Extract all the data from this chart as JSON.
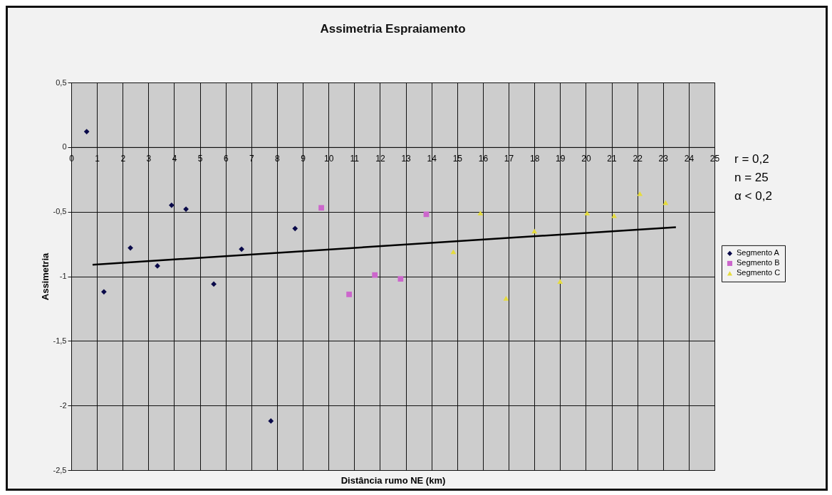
{
  "chart_data": {
    "type": "scatter",
    "title": "Assimetria Espraiamento",
    "xlabel": "Distância rumo NE (km)",
    "ylabel": "Assimetria",
    "xlim": [
      0,
      25
    ],
    "xticks": [
      0,
      1,
      2,
      3,
      4,
      5,
      6,
      7,
      8,
      9,
      10,
      11,
      12,
      13,
      14,
      15,
      16,
      17,
      18,
      19,
      20,
      21,
      22,
      23,
      24,
      25
    ],
    "ylim": [
      -2.5,
      0.5
    ],
    "yticks": [
      {
        "value": 0.5,
        "label": "0,5"
      },
      0,
      {
        "value": -0.5,
        "label": "-0,5"
      },
      -1,
      {
        "value": -1.5,
        "label": "-1,5"
      },
      -2,
      {
        "value": -2.5,
        "label": "-2,5"
      }
    ],
    "grid": true,
    "legend": "right",
    "annotations": [
      "r = 0,2",
      "n = 25",
      "α < 0,2"
    ],
    "series": [
      {
        "name": "Segmento A",
        "color": "#0a0a4a",
        "marker": "diamond",
        "x": [
          0.6,
          1.27,
          2.3,
          3.35,
          3.9,
          4.46,
          5.54,
          6.62,
          7.76,
          8.7
        ],
        "values": [
          0.12,
          -1.12,
          -0.78,
          -0.92,
          -0.45,
          -0.48,
          -1.06,
          -0.79,
          -2.12,
          -0.63
        ]
      },
      {
        "name": "Segmento B",
        "color": "#cc66cc",
        "marker": "square",
        "x": [
          9.72,
          10.8,
          11.8,
          12.8,
          13.8
        ],
        "values": [
          -0.47,
          -1.14,
          -0.99,
          -1.02,
          -0.52
        ]
      },
      {
        "name": "Segmento C",
        "color": "#e6dc3c",
        "marker": "triangle",
        "x": [
          14.85,
          15.9,
          16.9,
          18.0,
          19.0,
          20.05,
          21.1,
          22.1,
          23.1
        ],
        "values": [
          -0.81,
          -0.51,
          -1.17,
          -0.65,
          -1.04,
          -0.51,
          -0.53,
          -0.36,
          -0.43
        ]
      },
      {
        "type": "line",
        "color": "#000000",
        "x": [
          0.83,
          23.5
        ],
        "values": [
          -0.91,
          -0.62
        ]
      }
    ]
  }
}
